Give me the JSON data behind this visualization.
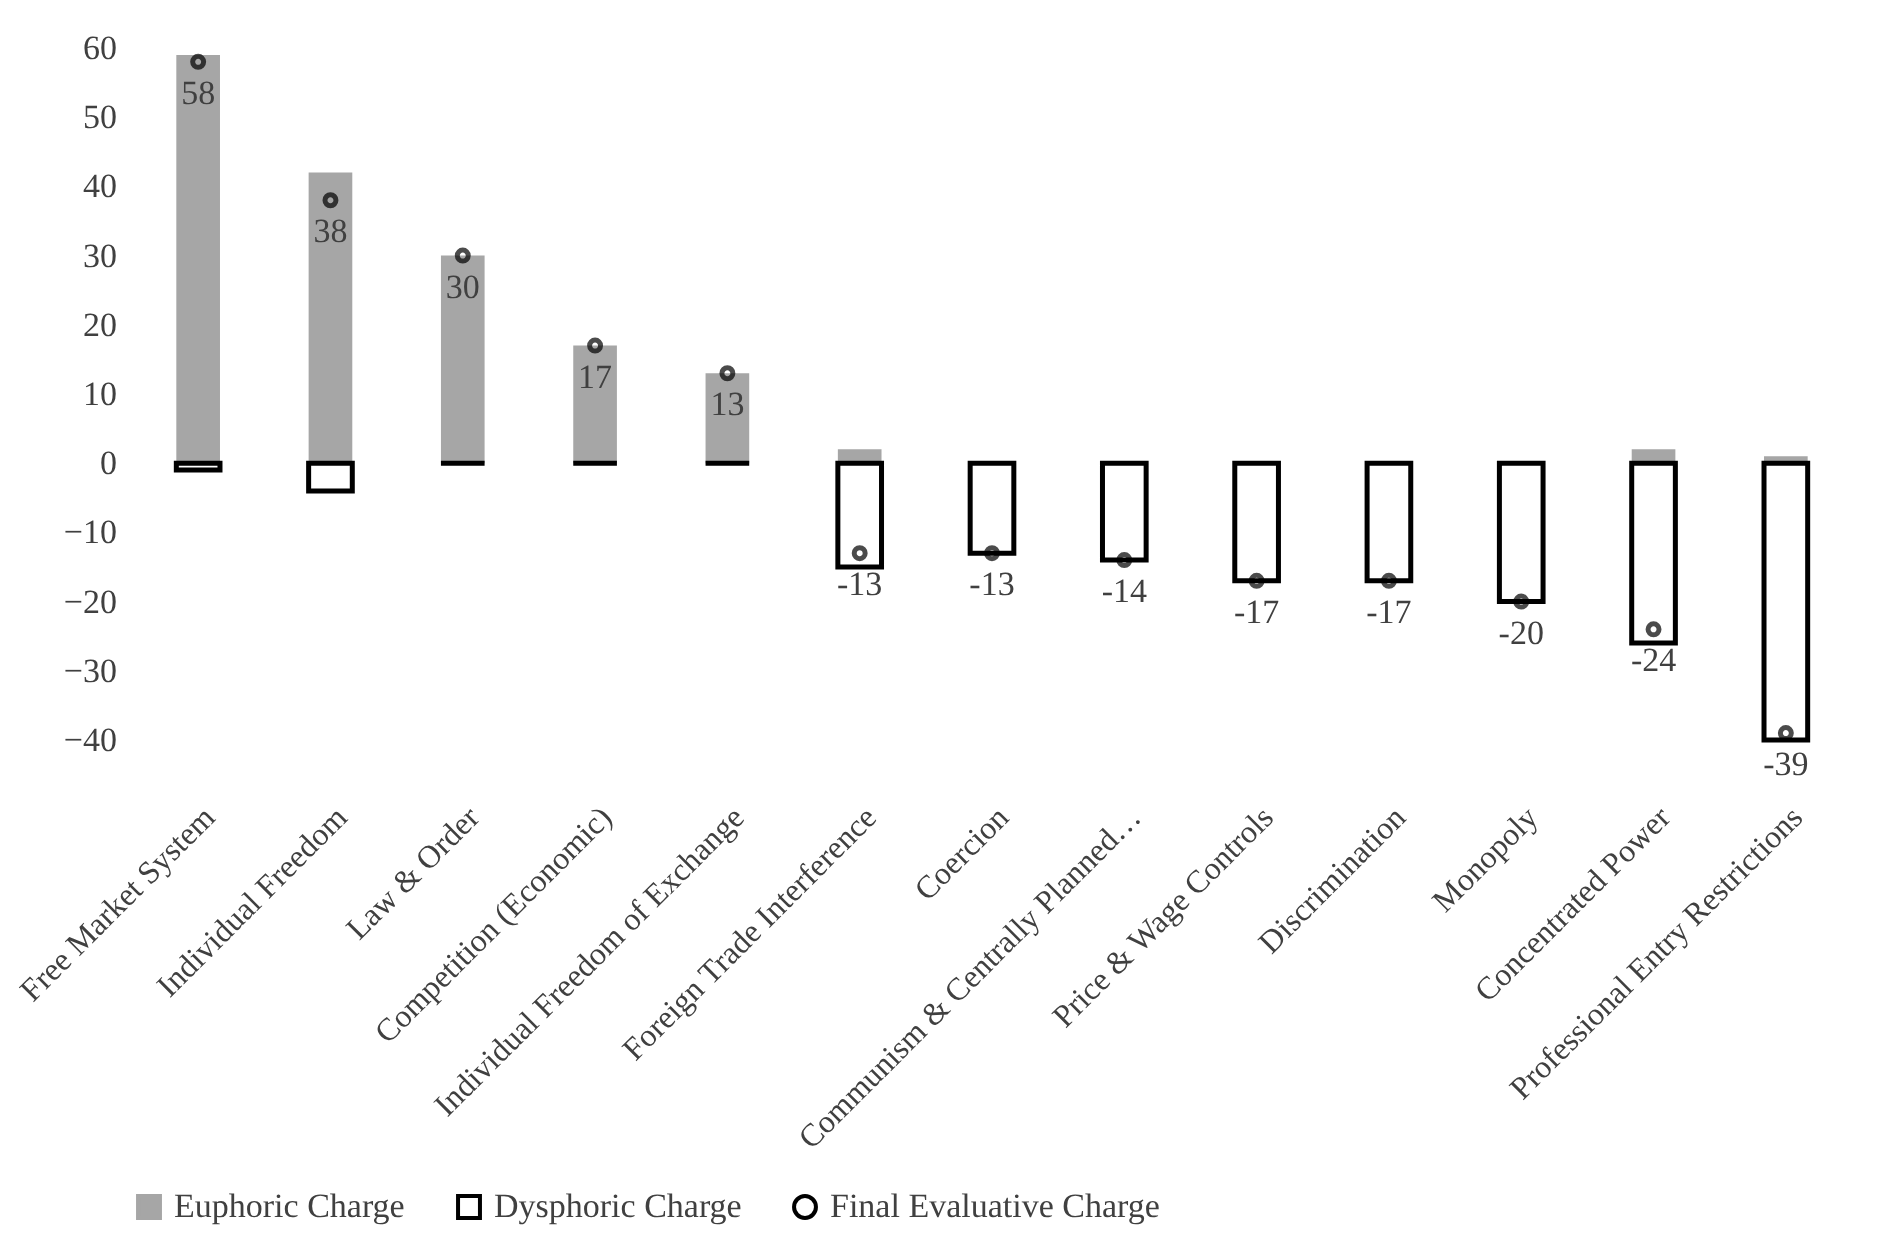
{
  "chart_data": {
    "type": "bar",
    "categories": [
      "Free Market System",
      "Individual Freedom",
      "Law & Order",
      "Competition (Economic)",
      "Individual Freedom of Exchange",
      "Foreign Trade Interference",
      "Coercion",
      "Communism & Centrally Planned…",
      "Price & Wage Controls",
      "Discrimination",
      "Monopoly",
      "Concentrated Power",
      "Professional Entry Restrictions"
    ],
    "series": [
      {
        "name": "Euphoric Charge",
        "color": "#a6a6a6",
        "values": [
          59,
          42,
          30,
          17,
          13,
          2,
          0,
          0,
          0,
          0,
          0,
          2,
          1
        ]
      },
      {
        "name": "Dysphoric Charge",
        "color": "#000000",
        "values": [
          -1,
          -4,
          0,
          0,
          0,
          -15,
          -13,
          -14,
          -17,
          -17,
          -20,
          -26,
          -40
        ]
      },
      {
        "name": "Final Evaluative Charge",
        "type": "scatter",
        "marker": "circle",
        "color": "#000000",
        "values": [
          58,
          38,
          30,
          17,
          13,
          -13,
          -13,
          -14,
          -17,
          -17,
          -20,
          -24,
          -39
        ],
        "value_labels": [
          "58",
          "38",
          "30",
          "17",
          "13",
          "-13",
          "-13",
          "-14",
          "-17",
          "-17",
          "-20",
          "-24",
          "-39"
        ]
      }
    ],
    "ylim": [
      -40,
      60
    ],
    "yticks": [
      -40,
      -30,
      -20,
      -10,
      0,
      10,
      20,
      30,
      40,
      50,
      60
    ],
    "grid": false,
    "legend": "bottom"
  }
}
